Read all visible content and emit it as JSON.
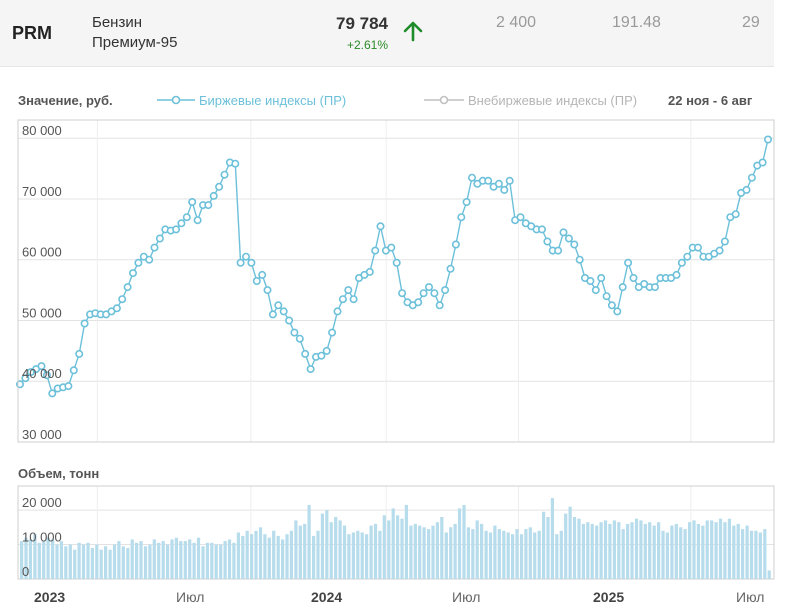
{
  "ticker": {
    "symbol": "PRM",
    "name_line1": "Бензин",
    "name_line2": "Премиум-95",
    "price": "79 784",
    "change": "+2.61%",
    "value1": "2 400",
    "value2": "191.48",
    "value3": "29",
    "arrow_icon": "arrow-up-icon",
    "up_color": "#1f8c2a"
  },
  "legend": {
    "y_label": "Значение, руб.",
    "exchange_label": "Биржевые индексы (ПР)",
    "otc_label": "Внебиржевые индексы (ПР)",
    "date_range": "22 ноя - 6 авг"
  },
  "volume_label": "Объем, тонн",
  "colors": {
    "series": "#6cc0da",
    "series_fill": "#d8eef6",
    "bar": "#b7dcec",
    "grid": "#e3e3e3",
    "frame": "#cfcfcf"
  },
  "chart_data": [
    {
      "type": "line",
      "ylabel": "Значение, руб.",
      "ylim": [
        30000,
        83000
      ],
      "yticks": [
        "30 000",
        "40 000",
        "50 000",
        "60 000",
        "70 000",
        "80 000"
      ],
      "xticks": [
        "2023",
        "Июл",
        "2024",
        "Июл",
        "2025",
        "Июл"
      ],
      "grid": true,
      "legend_position": "top",
      "series": [
        {
          "name": "Биржевые индексы (ПР)",
          "values": [
            39500,
            40500,
            41500,
            42000,
            42500,
            41000,
            38000,
            38800,
            39000,
            39200,
            41800,
            44500,
            49500,
            51000,
            51200,
            51000,
            51000,
            51500,
            52000,
            53500,
            55500,
            57800,
            59500,
            60500,
            60000,
            62000,
            63500,
            65000,
            64800,
            65000,
            66000,
            67000,
            69500,
            66500,
            69000,
            69000,
            70500,
            72000,
            74000,
            76000,
            75800,
            59500,
            60500,
            59500,
            56500,
            57500,
            55000,
            51000,
            52500,
            51500,
            50000,
            48000,
            47000,
            44500,
            42000,
            44000,
            44200,
            45000,
            48000,
            51500,
            53500,
            55000,
            53500,
            57000,
            57500,
            58000,
            61500,
            65500,
            61500,
            62000,
            59500,
            54500,
            53000,
            52500,
            53000,
            54500,
            55500,
            54500,
            52500,
            55000,
            58500,
            62500,
            67000,
            69500,
            73500,
            72500,
            73000,
            73000,
            72000,
            72500,
            71500,
            73000,
            66500,
            67000,
            66000,
            65500,
            65000,
            65000,
            63000,
            61500,
            61500,
            64500,
            63500,
            62500,
            60000,
            57000,
            56500,
            55000,
            57000,
            54000,
            52500,
            51500,
            55500,
            59500,
            57000,
            55500,
            56000,
            55500,
            55500,
            57000,
            57000,
            57000,
            57500,
            59500,
            60500,
            62000,
            62000,
            60500,
            60500,
            61000,
            61500,
            63000,
            67000,
            67500,
            71000,
            71500,
            73500,
            75500,
            76000,
            79784
          ]
        },
        {
          "name": "Внебиржевые индексы (ПР)",
          "values": []
        }
      ]
    },
    {
      "type": "bar",
      "ylabel": "Объем, тонн",
      "ylim": [
        0,
        27000
      ],
      "yticks": [
        "0",
        "10 000",
        "20 000"
      ],
      "xticks": [
        "2023",
        "Июл",
        "2024",
        "Июл",
        "2025",
        "Июл"
      ],
      "grid": true,
      "series": [
        {
          "name": "Объем",
          "values": [
            11000,
            12000,
            11500,
            13000,
            10500,
            11000,
            12000,
            11500,
            10000,
            11000,
            9500,
            10000,
            8500,
            10500,
            10000,
            10500,
            9000,
            10000,
            8500,
            9500,
            8500,
            10000,
            11000,
            9500,
            9000,
            11500,
            10500,
            11000,
            9500,
            10000,
            11500,
            10500,
            11000,
            10000,
            11500,
            12000,
            11000,
            11000,
            11500,
            10500,
            12000,
            9500,
            10500,
            10500,
            10000,
            10000,
            11000,
            11500,
            10500,
            13500,
            12500,
            14000,
            13000,
            14000,
            15000,
            13000,
            12000,
            14000,
            12500,
            11500,
            13000,
            14000,
            17000,
            15500,
            16000,
            21500,
            12500,
            14000,
            19000,
            20000,
            16500,
            18000,
            17000,
            15500,
            13000,
            13500,
            14000,
            13500,
            13000,
            15500,
            16000,
            14000,
            18500,
            17000,
            20500,
            18500,
            17500,
            21500,
            15500,
            16000,
            15500,
            15000,
            14500,
            15500,
            16500,
            18000,
            13500,
            15000,
            16000,
            20500,
            21500,
            15000,
            14500,
            17000,
            16000,
            14000,
            13500,
            15500,
            14500,
            14000,
            13500,
            13000,
            14500,
            13000,
            14500,
            15000,
            13500,
            14000,
            19500,
            18000,
            23500,
            13000,
            14000,
            19000,
            21000,
            18000,
            17500,
            16000,
            16500,
            16000,
            15500,
            16500,
            17000,
            16000,
            17000,
            16500,
            14500,
            16000,
            16500,
            17500,
            17000,
            16000,
            16500,
            15500,
            16500,
            14000,
            13500,
            15500,
            16000,
            15000,
            14500,
            16500,
            17000,
            16000,
            15500,
            17000,
            17000,
            16500,
            17500,
            16500,
            17500,
            15500,
            16000,
            14500,
            15500,
            14000,
            14000,
            13500,
            14500,
            2500
          ]
        }
      ]
    }
  ]
}
